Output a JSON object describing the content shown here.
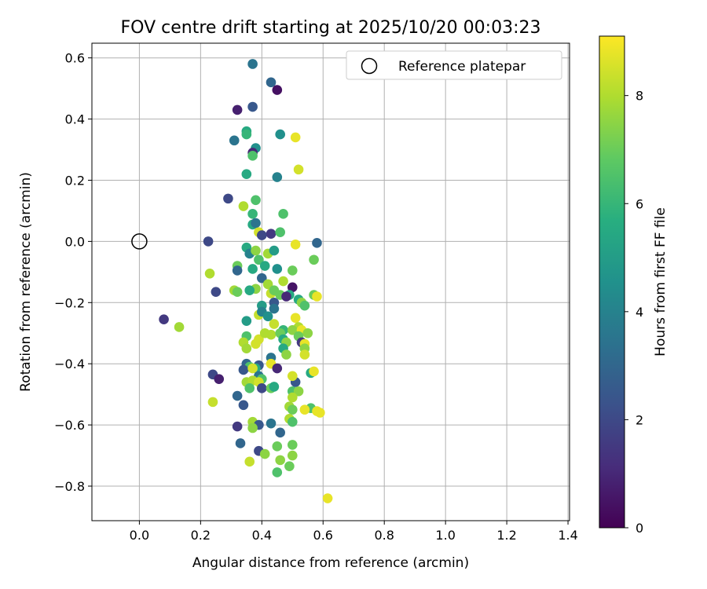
{
  "chart_data": {
    "type": "scatter",
    "title": "FOV centre drift starting at 2025/10/20 00:03:23",
    "xlabel": "Angular distance from reference (arcmin)",
    "ylabel": "Rotation from reference (arcmin)",
    "xlim": [
      -0.155,
      1.405
    ],
    "ylim": [
      -0.913,
      0.648
    ],
    "xticks": [
      0.0,
      0.2,
      0.4,
      0.6,
      0.8,
      1.0,
      1.2,
      1.4
    ],
    "xtick_labels": [
      "0.0",
      "0.2",
      "0.4",
      "0.6",
      "0.8",
      "1.0",
      "1.2",
      "1.4"
    ],
    "yticks": [
      0.6,
      0.4,
      0.2,
      0.0,
      -0.2,
      -0.4,
      -0.6,
      -0.8
    ],
    "ytick_labels": [
      "0.6",
      "0.4",
      "0.2",
      "0.0",
      "−0.2",
      "−0.4",
      "−0.6",
      "−0.8"
    ],
    "grid": true,
    "legend": {
      "position": "top-right",
      "label": "Reference platepar"
    },
    "reference_point": {
      "x": 0.0,
      "y": 0.0
    },
    "colorbar": {
      "label": "Hours from first FF file",
      "range": [
        0,
        9.1
      ],
      "ticks": [
        0,
        2,
        4,
        6,
        8
      ],
      "tick_labels": [
        "0",
        "2",
        "4",
        "6",
        "8"
      ],
      "colormap": "viridis"
    },
    "points": [
      [
        0.37,
        0.58,
        3.5
      ],
      [
        0.43,
        0.52,
        3.0
      ],
      [
        0.45,
        0.495,
        0.4
      ],
      [
        0.32,
        0.43,
        0.8
      ],
      [
        0.37,
        0.44,
        2.5
      ],
      [
        0.35,
        0.36,
        5.5
      ],
      [
        0.31,
        0.33,
        3.5
      ],
      [
        0.35,
        0.35,
        6.0
      ],
      [
        0.46,
        0.35,
        4.5
      ],
      [
        0.51,
        0.34,
        8.8
      ],
      [
        0.38,
        0.305,
        4.5
      ],
      [
        0.37,
        0.29,
        1.0
      ],
      [
        0.37,
        0.28,
        6.5
      ],
      [
        0.52,
        0.235,
        8.5
      ],
      [
        0.35,
        0.22,
        5.5
      ],
      [
        0.45,
        0.21,
        4.0
      ],
      [
        0.29,
        0.14,
        2.0
      ],
      [
        0.38,
        0.135,
        6.5
      ],
      [
        0.34,
        0.115,
        8.0
      ],
      [
        0.37,
        0.09,
        6.0
      ],
      [
        0.47,
        0.09,
        6.5
      ],
      [
        0.37,
        0.055,
        5.5
      ],
      [
        0.38,
        0.06,
        3.5
      ],
      [
        0.39,
        0.03,
        8.5
      ],
      [
        0.43,
        0.025,
        1.5
      ],
      [
        0.46,
        0.03,
        6.5
      ],
      [
        0.4,
        0.02,
        2.0
      ],
      [
        0.225,
        0.0,
        2.0
      ],
      [
        0.51,
        -0.01,
        8.8
      ],
      [
        0.58,
        -0.005,
        3.0
      ],
      [
        0.35,
        -0.02,
        5.5
      ],
      [
        0.36,
        -0.04,
        4.0
      ],
      [
        0.38,
        -0.03,
        7.5
      ],
      [
        0.42,
        -0.04,
        7.8
      ],
      [
        0.44,
        -0.03,
        5.0
      ],
      [
        0.57,
        -0.06,
        7.0
      ],
      [
        0.39,
        -0.06,
        6.5
      ],
      [
        0.41,
        -0.08,
        5.5
      ],
      [
        0.32,
        -0.08,
        7.0
      ],
      [
        0.32,
        -0.095,
        3.0
      ],
      [
        0.37,
        -0.09,
        5.5
      ],
      [
        0.45,
        -0.09,
        4.5
      ],
      [
        0.5,
        -0.095,
        7.0
      ],
      [
        0.23,
        -0.105,
        8.0
      ],
      [
        0.4,
        -0.12,
        3.0
      ],
      [
        0.47,
        -0.13,
        8.0
      ],
      [
        0.38,
        -0.155,
        7.5
      ],
      [
        0.42,
        -0.14,
        7.8
      ],
      [
        0.5,
        -0.15,
        0.5
      ],
      [
        0.25,
        -0.165,
        2.0
      ],
      [
        0.31,
        -0.16,
        7.8
      ],
      [
        0.36,
        -0.16,
        5.5
      ],
      [
        0.32,
        -0.165,
        7.0
      ],
      [
        0.43,
        -0.17,
        8.3
      ],
      [
        0.44,
        -0.16,
        7.0
      ],
      [
        0.46,
        -0.175,
        7.0
      ],
      [
        0.49,
        -0.175,
        5.5
      ],
      [
        0.52,
        -0.19,
        5.5
      ],
      [
        0.57,
        -0.175,
        7.0
      ],
      [
        0.58,
        -0.18,
        8.8
      ],
      [
        0.4,
        -0.21,
        5.0
      ],
      [
        0.44,
        -0.2,
        2.5
      ],
      [
        0.48,
        -0.18,
        1.0
      ],
      [
        0.53,
        -0.2,
        7.5
      ],
      [
        0.54,
        -0.21,
        6.5
      ],
      [
        0.08,
        -0.255,
        1.5
      ],
      [
        0.13,
        -0.28,
        7.8
      ],
      [
        0.35,
        -0.26,
        5.0
      ],
      [
        0.39,
        -0.24,
        8.3
      ],
      [
        0.4,
        -0.23,
        4.0
      ],
      [
        0.42,
        -0.245,
        4.5
      ],
      [
        0.44,
        -0.22,
        3.5
      ],
      [
        0.44,
        -0.27,
        8.3
      ],
      [
        0.47,
        -0.29,
        6.0
      ],
      [
        0.51,
        -0.25,
        8.8
      ],
      [
        0.52,
        -0.28,
        8.0
      ],
      [
        0.5,
        -0.29,
        7.5
      ],
      [
        0.53,
        -0.29,
        8.8
      ],
      [
        0.55,
        -0.3,
        7.5
      ],
      [
        0.35,
        -0.31,
        6.5
      ],
      [
        0.39,
        -0.32,
        8.5
      ],
      [
        0.41,
        -0.3,
        8.0
      ],
      [
        0.43,
        -0.305,
        8.0
      ],
      [
        0.46,
        -0.3,
        7.0
      ],
      [
        0.47,
        -0.32,
        5.5
      ],
      [
        0.48,
        -0.33,
        7.5
      ],
      [
        0.52,
        -0.31,
        7.0
      ],
      [
        0.53,
        -0.33,
        1.5
      ],
      [
        0.54,
        -0.335,
        8.8
      ],
      [
        0.34,
        -0.33,
        8.0
      ],
      [
        0.38,
        -0.335,
        8.5
      ],
      [
        0.35,
        -0.35,
        7.8
      ],
      [
        0.47,
        -0.35,
        5.5
      ],
      [
        0.48,
        -0.37,
        7.5
      ],
      [
        0.54,
        -0.35,
        7.5
      ],
      [
        0.54,
        -0.37,
        8.5
      ],
      [
        0.43,
        -0.38,
        3.5
      ],
      [
        0.35,
        -0.4,
        3.0
      ],
      [
        0.43,
        -0.4,
        8.8
      ],
      [
        0.36,
        -0.41,
        6.5
      ],
      [
        0.39,
        -0.405,
        2.5
      ],
      [
        0.38,
        -0.415,
        5.5
      ],
      [
        0.45,
        -0.415,
        1.0
      ],
      [
        0.34,
        -0.42,
        2.5
      ],
      [
        0.37,
        -0.415,
        8.5
      ],
      [
        0.56,
        -0.43,
        5.5
      ],
      [
        0.57,
        -0.425,
        8.8
      ],
      [
        0.24,
        -0.435,
        2.0
      ],
      [
        0.26,
        -0.45,
        0.8
      ],
      [
        0.39,
        -0.44,
        3.5
      ],
      [
        0.4,
        -0.45,
        6.5
      ],
      [
        0.35,
        -0.46,
        7.8
      ],
      [
        0.37,
        -0.455,
        8.0
      ],
      [
        0.39,
        -0.46,
        8.5
      ],
      [
        0.51,
        -0.46,
        2.5
      ],
      [
        0.5,
        -0.44,
        8.5
      ],
      [
        0.36,
        -0.48,
        6.5
      ],
      [
        0.4,
        -0.48,
        2.0
      ],
      [
        0.43,
        -0.48,
        7.0
      ],
      [
        0.44,
        -0.475,
        5.5
      ],
      [
        0.5,
        -0.49,
        6.5
      ],
      [
        0.52,
        -0.49,
        7.5
      ],
      [
        0.32,
        -0.505,
        3.0
      ],
      [
        0.5,
        -0.51,
        8.0
      ],
      [
        0.24,
        -0.525,
        8.3
      ],
      [
        0.34,
        -0.535,
        2.5
      ],
      [
        0.49,
        -0.54,
        7.8
      ],
      [
        0.5,
        -0.55,
        7.0
      ],
      [
        0.56,
        -0.545,
        6.5
      ],
      [
        0.54,
        -0.55,
        8.8
      ],
      [
        0.58,
        -0.555,
        8.8
      ],
      [
        0.59,
        -0.56,
        8.8
      ],
      [
        0.37,
        -0.59,
        7.8
      ],
      [
        0.39,
        -0.6,
        2.5
      ],
      [
        0.43,
        -0.595,
        3.5
      ],
      [
        0.49,
        -0.58,
        8.0
      ],
      [
        0.5,
        -0.59,
        6.5
      ],
      [
        0.32,
        -0.605,
        1.5
      ],
      [
        0.37,
        -0.61,
        7.5
      ],
      [
        0.46,
        -0.625,
        3.0
      ],
      [
        0.33,
        -0.66,
        3.0
      ],
      [
        0.45,
        -0.67,
        7.0
      ],
      [
        0.5,
        -0.665,
        7.0
      ],
      [
        0.39,
        -0.685,
        2.0
      ],
      [
        0.41,
        -0.695,
        7.5
      ],
      [
        0.5,
        -0.7,
        7.5
      ],
      [
        0.36,
        -0.72,
        8.3
      ],
      [
        0.46,
        -0.715,
        7.5
      ],
      [
        0.49,
        -0.735,
        7.0
      ],
      [
        0.45,
        -0.755,
        6.5
      ],
      [
        0.615,
        -0.84,
        8.8
      ]
    ]
  }
}
